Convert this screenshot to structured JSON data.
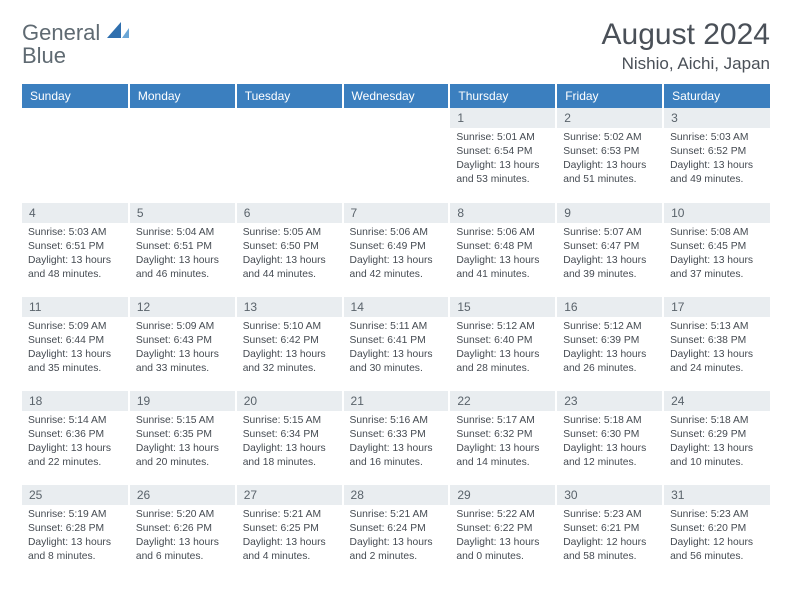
{
  "logo": {
    "text1": "General",
    "text2": "Blue"
  },
  "title": "August 2024",
  "location": "Nishio, Aichi, Japan",
  "colors": {
    "header_bg": "#3b7fbf",
    "header_text": "#ffffff",
    "daynum_bg": "#e9edf0",
    "text": "#454b52",
    "title_text": "#4a5058"
  },
  "weekdays": [
    "Sunday",
    "Monday",
    "Tuesday",
    "Wednesday",
    "Thursday",
    "Friday",
    "Saturday"
  ],
  "weeks": [
    [
      {
        "day": "",
        "lines": []
      },
      {
        "day": "",
        "lines": []
      },
      {
        "day": "",
        "lines": []
      },
      {
        "day": "",
        "lines": []
      },
      {
        "day": "1",
        "lines": [
          "Sunrise: 5:01 AM",
          "Sunset: 6:54 PM",
          "Daylight: 13 hours and 53 minutes."
        ]
      },
      {
        "day": "2",
        "lines": [
          "Sunrise: 5:02 AM",
          "Sunset: 6:53 PM",
          "Daylight: 13 hours and 51 minutes."
        ]
      },
      {
        "day": "3",
        "lines": [
          "Sunrise: 5:03 AM",
          "Sunset: 6:52 PM",
          "Daylight: 13 hours and 49 minutes."
        ]
      }
    ],
    [
      {
        "day": "4",
        "lines": [
          "Sunrise: 5:03 AM",
          "Sunset: 6:51 PM",
          "Daylight: 13 hours and 48 minutes."
        ]
      },
      {
        "day": "5",
        "lines": [
          "Sunrise: 5:04 AM",
          "Sunset: 6:51 PM",
          "Daylight: 13 hours and 46 minutes."
        ]
      },
      {
        "day": "6",
        "lines": [
          "Sunrise: 5:05 AM",
          "Sunset: 6:50 PM",
          "Daylight: 13 hours and 44 minutes."
        ]
      },
      {
        "day": "7",
        "lines": [
          "Sunrise: 5:06 AM",
          "Sunset: 6:49 PM",
          "Daylight: 13 hours and 42 minutes."
        ]
      },
      {
        "day": "8",
        "lines": [
          "Sunrise: 5:06 AM",
          "Sunset: 6:48 PM",
          "Daylight: 13 hours and 41 minutes."
        ]
      },
      {
        "day": "9",
        "lines": [
          "Sunrise: 5:07 AM",
          "Sunset: 6:47 PM",
          "Daylight: 13 hours and 39 minutes."
        ]
      },
      {
        "day": "10",
        "lines": [
          "Sunrise: 5:08 AM",
          "Sunset: 6:45 PM",
          "Daylight: 13 hours and 37 minutes."
        ]
      }
    ],
    [
      {
        "day": "11",
        "lines": [
          "Sunrise: 5:09 AM",
          "Sunset: 6:44 PM",
          "Daylight: 13 hours and 35 minutes."
        ]
      },
      {
        "day": "12",
        "lines": [
          "Sunrise: 5:09 AM",
          "Sunset: 6:43 PM",
          "Daylight: 13 hours and 33 minutes."
        ]
      },
      {
        "day": "13",
        "lines": [
          "Sunrise: 5:10 AM",
          "Sunset: 6:42 PM",
          "Daylight: 13 hours and 32 minutes."
        ]
      },
      {
        "day": "14",
        "lines": [
          "Sunrise: 5:11 AM",
          "Sunset: 6:41 PM",
          "Daylight: 13 hours and 30 minutes."
        ]
      },
      {
        "day": "15",
        "lines": [
          "Sunrise: 5:12 AM",
          "Sunset: 6:40 PM",
          "Daylight: 13 hours and 28 minutes."
        ]
      },
      {
        "day": "16",
        "lines": [
          "Sunrise: 5:12 AM",
          "Sunset: 6:39 PM",
          "Daylight: 13 hours and 26 minutes."
        ]
      },
      {
        "day": "17",
        "lines": [
          "Sunrise: 5:13 AM",
          "Sunset: 6:38 PM",
          "Daylight: 13 hours and 24 minutes."
        ]
      }
    ],
    [
      {
        "day": "18",
        "lines": [
          "Sunrise: 5:14 AM",
          "Sunset: 6:36 PM",
          "Daylight: 13 hours and 22 minutes."
        ]
      },
      {
        "day": "19",
        "lines": [
          "Sunrise: 5:15 AM",
          "Sunset: 6:35 PM",
          "Daylight: 13 hours and 20 minutes."
        ]
      },
      {
        "day": "20",
        "lines": [
          "Sunrise: 5:15 AM",
          "Sunset: 6:34 PM",
          "Daylight: 13 hours and 18 minutes."
        ]
      },
      {
        "day": "21",
        "lines": [
          "Sunrise: 5:16 AM",
          "Sunset: 6:33 PM",
          "Daylight: 13 hours and 16 minutes."
        ]
      },
      {
        "day": "22",
        "lines": [
          "Sunrise: 5:17 AM",
          "Sunset: 6:32 PM",
          "Daylight: 13 hours and 14 minutes."
        ]
      },
      {
        "day": "23",
        "lines": [
          "Sunrise: 5:18 AM",
          "Sunset: 6:30 PM",
          "Daylight: 13 hours and 12 minutes."
        ]
      },
      {
        "day": "24",
        "lines": [
          "Sunrise: 5:18 AM",
          "Sunset: 6:29 PM",
          "Daylight: 13 hours and 10 minutes."
        ]
      }
    ],
    [
      {
        "day": "25",
        "lines": [
          "Sunrise: 5:19 AM",
          "Sunset: 6:28 PM",
          "Daylight: 13 hours and 8 minutes."
        ]
      },
      {
        "day": "26",
        "lines": [
          "Sunrise: 5:20 AM",
          "Sunset: 6:26 PM",
          "Daylight: 13 hours and 6 minutes."
        ]
      },
      {
        "day": "27",
        "lines": [
          "Sunrise: 5:21 AM",
          "Sunset: 6:25 PM",
          "Daylight: 13 hours and 4 minutes."
        ]
      },
      {
        "day": "28",
        "lines": [
          "Sunrise: 5:21 AM",
          "Sunset: 6:24 PM",
          "Daylight: 13 hours and 2 minutes."
        ]
      },
      {
        "day": "29",
        "lines": [
          "Sunrise: 5:22 AM",
          "Sunset: 6:22 PM",
          "Daylight: 13 hours and 0 minutes."
        ]
      },
      {
        "day": "30",
        "lines": [
          "Sunrise: 5:23 AM",
          "Sunset: 6:21 PM",
          "Daylight: 12 hours and 58 minutes."
        ]
      },
      {
        "day": "31",
        "lines": [
          "Sunrise: 5:23 AM",
          "Sunset: 6:20 PM",
          "Daylight: 12 hours and 56 minutes."
        ]
      }
    ]
  ]
}
